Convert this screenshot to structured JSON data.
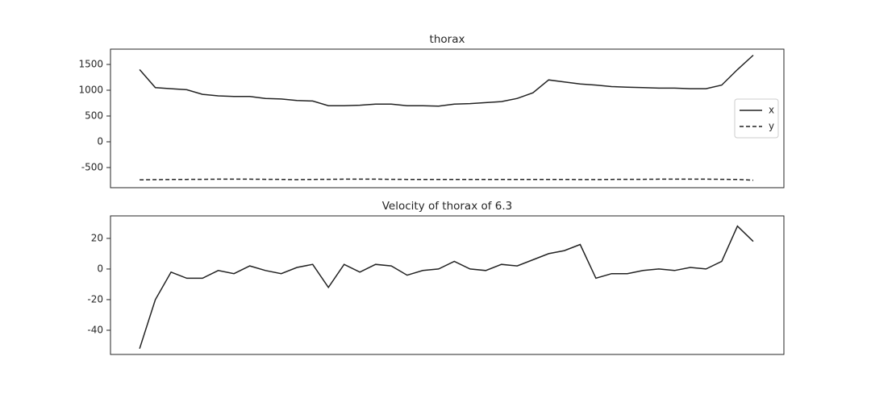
{
  "chart_data": [
    {
      "type": "line",
      "title": "thorax",
      "x": [
        0,
        1,
        2,
        3,
        4,
        5,
        6,
        7,
        8,
        9,
        10,
        11,
        12,
        13,
        14,
        15,
        16,
        17,
        18,
        19,
        20,
        21,
        22,
        23,
        24,
        25,
        26,
        27,
        28,
        29,
        30,
        31,
        32,
        33,
        34,
        35,
        36,
        37,
        38,
        39
      ],
      "xlim": [
        -1.85,
        40.95
      ],
      "ylim": [
        -891,
        1797
      ],
      "yticks": [
        -500,
        0,
        500,
        1000,
        1500
      ],
      "legend": "center right",
      "series": [
        {
          "name": "x",
          "color": "#222222",
          "dash": "solid",
          "values": [
            1400,
            1050,
            1030,
            1010,
            920,
            890,
            880,
            880,
            840,
            830,
            800,
            790,
            700,
            700,
            710,
            730,
            730,
            700,
            700,
            690,
            730,
            740,
            760,
            780,
            840,
            950,
            1200,
            1160,
            1120,
            1100,
            1070,
            1060,
            1050,
            1040,
            1040,
            1030,
            1030,
            1100,
            1400,
            1680
          ]
        },
        {
          "name": "y",
          "color": "#222222",
          "dash": "dashed",
          "values": [
            -740,
            -735,
            -732,
            -730,
            -728,
            -726,
            -725,
            -725,
            -728,
            -730,
            -735,
            -730,
            -728,
            -725,
            -725,
            -726,
            -728,
            -730,
            -730,
            -730,
            -730,
            -730,
            -730,
            -730,
            -730,
            -730,
            -730,
            -730,
            -733,
            -733,
            -730,
            -728,
            -728,
            -726,
            -725,
            -725,
            -726,
            -728,
            -732,
            -745
          ]
        }
      ]
    },
    {
      "type": "line",
      "title": "Velocity of thorax of 6.3",
      "x": [
        0,
        1,
        2,
        3,
        4,
        5,
        6,
        7,
        8,
        9,
        10,
        11,
        12,
        13,
        14,
        15,
        16,
        17,
        18,
        19,
        20,
        21,
        22,
        23,
        24,
        25,
        26,
        27,
        28,
        29,
        30,
        31,
        32,
        33,
        34,
        35,
        36,
        37,
        38,
        39
      ],
      "xlim": [
        -1.85,
        40.95
      ],
      "ylim": [
        -55.8,
        34.7
      ],
      "yticks": [
        -40,
        -20,
        0,
        20
      ],
      "series": [
        {
          "name": null,
          "color": "#222222",
          "dash": "solid",
          "values": [
            -52,
            -20,
            -2,
            -6,
            -6,
            -1,
            -3,
            2,
            -1,
            -3,
            1,
            3,
            -12,
            3,
            -2,
            3,
            2,
            -4,
            -1,
            0,
            5,
            0,
            -1,
            3,
            2,
            6,
            10,
            12,
            16,
            -6,
            -3,
            -3,
            -1,
            0,
            -1,
            1,
            0,
            5,
            28,
            18
          ]
        }
      ]
    }
  ]
}
